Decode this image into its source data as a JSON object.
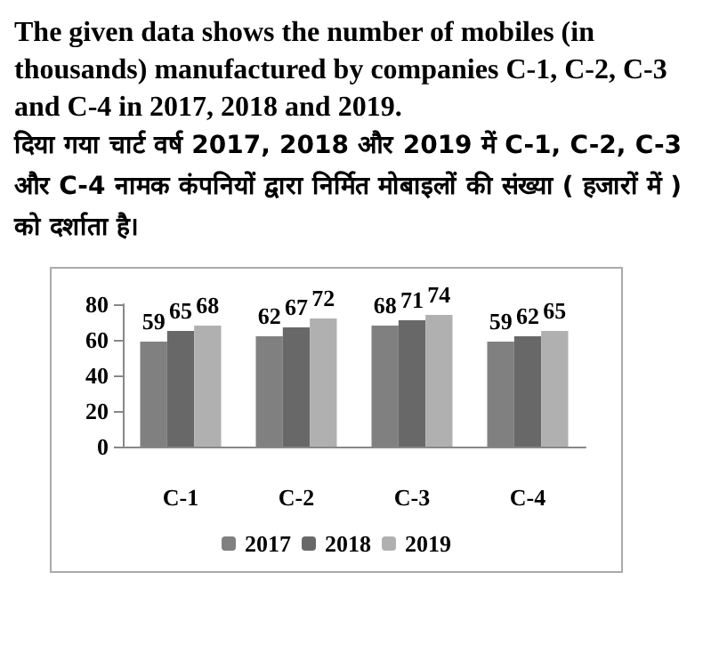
{
  "chart_data": {
    "type": "bar",
    "title": "The given data shows the number of mobiles (in thousands) manufactured by companies C-1, C-2, C-3 and C-4 in 2017, 2018 and 2019.",
    "subtitle": "दिया गया चार्ट वर्ष 2017, 2018 और 2019 में C-1, C-2, C-3 और C-4 नामक कंपनियों द्वारा निर्मित मोबाइलों की संख्या ( हजारों में ) को दर्शाता है।",
    "categories": [
      "C-1",
      "C-2",
      "C-3",
      "C-4"
    ],
    "series": [
      {
        "name": "2017",
        "color": "#808080",
        "values": [
          59,
          62,
          68,
          59
        ]
      },
      {
        "name": "2018",
        "color": "#686868",
        "values": [
          65,
          67,
          71,
          62
        ]
      },
      {
        "name": "2019",
        "color": "#b0b0b0",
        "values": [
          68,
          72,
          74,
          65
        ]
      }
    ],
    "ylim": [
      0,
      80
    ],
    "yticks": [
      0,
      20,
      40,
      60,
      80
    ],
    "grid": false,
    "legend": "bottom",
    "data_labels": true
  }
}
